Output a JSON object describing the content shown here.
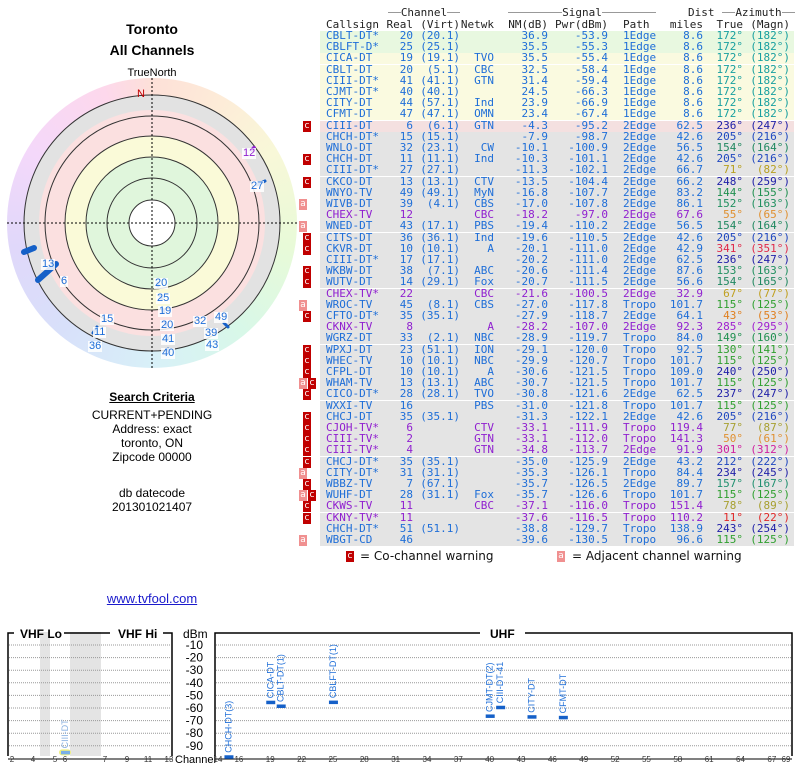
{
  "location": {
    "city": "Toronto",
    "scope": "All Channels"
  },
  "polar": {
    "north_label": "TrueNorth",
    "n_marker": "N",
    "labels": [
      {
        "text": "12",
        "color": "#9020d0"
      },
      {
        "text": "27",
        "color": "#1e6ed8"
      },
      {
        "text": "13",
        "color": "#1e6ed8"
      },
      {
        "text": "6",
        "color": "#1e6ed8"
      },
      {
        "text": "15",
        "color": "#1e6ed8"
      },
      {
        "text": "11",
        "color": "#1e6ed8"
      },
      {
        "text": "36",
        "color": "#1e6ed8"
      },
      {
        "text": "20",
        "color": "#1e6ed8"
      },
      {
        "text": "25",
        "color": "#1e6ed8"
      },
      {
        "text": "19",
        "color": "#1e6ed8"
      },
      {
        "text": "20",
        "color": "#1e6ed8"
      },
      {
        "text": "41",
        "color": "#1e6ed8"
      },
      {
        "text": "40",
        "color": "#1e6ed8"
      },
      {
        "text": "32",
        "color": "#1e6ed8"
      },
      {
        "text": "39",
        "color": "#1e6ed8"
      },
      {
        "text": "43",
        "color": "#1e6ed8"
      },
      {
        "text": "49",
        "color": "#1e6ed8"
      }
    ]
  },
  "search_criteria": {
    "heading": "Search Criteria",
    "lines": [
      "CURRENT+PENDING",
      "Address: exact",
      "toronto, ON",
      "Zipcode 00000"
    ],
    "db_label": "db datecode",
    "db_value": "201301021407"
  },
  "link": "www.tvfool.com",
  "table": {
    "group_headers": {
      "channel": "Channel",
      "signal": "Signal",
      "dist": "Dist",
      "azimuth": "Azimuth"
    },
    "columns": [
      "Callsign",
      "Real",
      "(Virt)",
      "Netwk",
      "NM(dB)",
      "Pwr(dBm)",
      "Path",
      "miles",
      "True",
      "(Magn)"
    ],
    "fields": [
      "warnings",
      "callsign",
      "real",
      "virt",
      "netwk",
      "nm",
      "pwr",
      "path",
      "dist",
      "true",
      "magn",
      "analog",
      "az_color"
    ],
    "rows": [
      [
        "",
        "CBLT-DT*",
        "20",
        "(20.1)",
        "",
        "36.9",
        "-53.9",
        "1Edge",
        "8.6",
        "172°",
        "(182°)",
        false,
        "#18a0a0"
      ],
      [
        "",
        "CBLFT-D*",
        "25",
        "(25.1)",
        "",
        "35.5",
        "-55.3",
        "1Edge",
        "8.6",
        "172°",
        "(182°)",
        false,
        "#18a0a0"
      ],
      [
        "",
        "CICA-DT",
        "19",
        "(19.1)",
        "TVO",
        "35.5",
        "-55.4",
        "1Edge",
        "8.6",
        "172°",
        "(182°)",
        false,
        "#18a0a0"
      ],
      [
        "",
        "CBLT-DT",
        "20",
        "(5.1)",
        "CBC",
        "32.5",
        "-58.4",
        "1Edge",
        "8.6",
        "172°",
        "(182°)",
        false,
        "#18a0a0"
      ],
      [
        "",
        "CIII-DT*",
        "41",
        "(41.1)",
        "GTN",
        "31.4",
        "-59.4",
        "1Edge",
        "8.6",
        "172°",
        "(182°)",
        false,
        "#18a0a0"
      ],
      [
        "",
        "CJMT-DT*",
        "40",
        "(40.1)",
        "",
        "24.5",
        "-66.3",
        "1Edge",
        "8.6",
        "172°",
        "(182°)",
        false,
        "#18a0a0"
      ],
      [
        "",
        "CITY-DT",
        "44",
        "(57.1)",
        "Ind",
        "23.9",
        "-66.9",
        "1Edge",
        "8.6",
        "172°",
        "(182°)",
        false,
        "#18a0a0"
      ],
      [
        "",
        "CFMT-DT",
        "47",
        "(47.1)",
        "OMN",
        "23.4",
        "-67.4",
        "1Edge",
        "8.6",
        "172°",
        "(182°)",
        false,
        "#18a0a0"
      ],
      [
        "c",
        "CIII-DT",
        "6",
        "(6.1)",
        "GTN",
        "-4.3",
        "-95.2",
        "2Edge",
        "62.5",
        "236°",
        "(247°)",
        false,
        "#2020a8"
      ],
      [
        "",
        "CHCH-DT*",
        "15",
        "(15.1)",
        "",
        "-7.9",
        "-98.7",
        "2Edge",
        "42.6",
        "205°",
        "(216°)",
        false,
        "#2048c0"
      ],
      [
        "",
        "WNLO-DT",
        "32",
        "(23.1)",
        "CW",
        "-10.1",
        "-100.9",
        "2Edge",
        "56.5",
        "154°",
        "(164°)",
        false,
        "#208860"
      ],
      [
        "c",
        "CHCH-DT",
        "11",
        "(11.1)",
        "Ind",
        "-10.3",
        "-101.1",
        "2Edge",
        "42.6",
        "205°",
        "(216°)",
        false,
        "#2048c0"
      ],
      [
        "",
        "CIII-DT*",
        "27",
        "(27.1)",
        "",
        "-11.3",
        "-102.1",
        "2Edge",
        "66.7",
        "71°",
        "(82°)",
        false,
        "#b8a020"
      ],
      [
        "c",
        "CKCO-DT",
        "13",
        "(13.1)",
        "CTV",
        "-13.5",
        "-104.4",
        "2Edge",
        "66.2",
        "248°",
        "(259°)",
        false,
        "#2020a8"
      ],
      [
        "",
        "WNYO-TV",
        "49",
        "(49.1)",
        "MyN",
        "-16.8",
        "-107.7",
        "2Edge",
        "83.2",
        "144°",
        "(155°)",
        false,
        "#209050"
      ],
      [
        "a",
        "WIVB-DT",
        "39",
        "(4.1)",
        "CBS",
        "-17.0",
        "-107.8",
        "2Edge",
        "86.1",
        "152°",
        "(163°)",
        false,
        "#209060"
      ],
      [
        "",
        "CHEX-TV",
        "12",
        "",
        "CBC",
        "-18.2",
        "-97.0",
        "2Edge",
        "67.6",
        "55°",
        "(65°)",
        true,
        "#e09030"
      ],
      [
        "a",
        "WNED-DT",
        "43",
        "(17.1)",
        "PBS",
        "-19.4",
        "-110.2",
        "2Edge",
        "56.5",
        "154°",
        "(164°)",
        false,
        "#208860"
      ],
      [
        "c",
        "CITS-DT",
        "36",
        "(36.1)",
        "Ind",
        "-19.6",
        "-110.5",
        "2Edge",
        "42.6",
        "205°",
        "(216°)",
        false,
        "#2048c0"
      ],
      [
        "c",
        "CKVR-DT",
        "10",
        "(10.1)",
        "A",
        "-20.1",
        "-111.0",
        "2Edge",
        "42.9",
        "341°",
        "(351°)",
        false,
        "#e02848"
      ],
      [
        "",
        "CIII-DT*",
        "17",
        "(17.1)",
        "",
        "-20.2",
        "-111.0",
        "2Edge",
        "62.5",
        "236°",
        "(247°)",
        false,
        "#2020a8"
      ],
      [
        "c",
        "WKBW-DT",
        "38",
        "(7.1)",
        "ABC",
        "-20.6",
        "-111.4",
        "2Edge",
        "87.6",
        "153°",
        "(163°)",
        false,
        "#209060"
      ],
      [
        "c",
        "WUTV-DT",
        "14",
        "(29.1)",
        "Fox",
        "-20.7",
        "-111.5",
        "2Edge",
        "56.6",
        "154°",
        "(165°)",
        false,
        "#208860"
      ],
      [
        "",
        "CHEX-TV*",
        "22",
        "",
        "CBC",
        "-21.6",
        "-100.5",
        "2Edge",
        "32.9",
        "67°",
        "(77°)",
        true,
        "#c0a020"
      ],
      [
        "a",
        "WROC-TV",
        "45",
        "(8.1)",
        "CBS",
        "-27.0",
        "-117.8",
        "Tropo",
        "101.7",
        "115°",
        "(125°)",
        false,
        "#30a030"
      ],
      [
        "c",
        "CFTO-DT*",
        "35",
        "(35.1)",
        "",
        "-27.9",
        "-118.7",
        "2Edge",
        "64.1",
        "43°",
        "(53°)",
        false,
        "#e08020"
      ],
      [
        "",
        "CKNX-TV",
        "8",
        "",
        "A",
        "-28.2",
        "-107.0",
        "2Edge",
        "92.3",
        "285°",
        "(295°)",
        true,
        "#a020d0"
      ],
      [
        "",
        "WGRZ-DT",
        "33",
        "(2.1)",
        "NBC",
        "-28.9",
        "-119.7",
        "Tropo",
        "84.0",
        "149°",
        "(160°)",
        false,
        "#209050"
      ],
      [
        "c",
        "WPXJ-DT",
        "23",
        "(51.1)",
        "ION",
        "-29.1",
        "-120.0",
        "Tropo",
        "92.5",
        "130°",
        "(141°)",
        false,
        "#30a030"
      ],
      [
        "c",
        "WHEC-TV",
        "10",
        "(10.1)",
        "NBC",
        "-29.9",
        "-120.7",
        "Tropo",
        "101.7",
        "115°",
        "(125°)",
        false,
        "#30a030"
      ],
      [
        "c",
        "CFPL-DT",
        "10",
        "(10.1)",
        "A",
        "-30.6",
        "-121.5",
        "Tropo",
        "109.0",
        "240°",
        "(250°)",
        false,
        "#2020a8"
      ],
      [
        "ac",
        "WHAM-TV",
        "13",
        "(13.1)",
        "ABC",
        "-30.7",
        "-121.5",
        "Tropo",
        "101.7",
        "115°",
        "(125°)",
        false,
        "#30a030"
      ],
      [
        "c",
        "CICO-DT*",
        "28",
        "(28.1)",
        "TVO",
        "-30.8",
        "-121.6",
        "2Edge",
        "62.5",
        "237°",
        "(247°)",
        false,
        "#2020a8"
      ],
      [
        "",
        "WXXI-TV",
        "16",
        "",
        "PBS",
        "-31.0",
        "-121.8",
        "Tropo",
        "101.7",
        "115°",
        "(125°)",
        false,
        "#30a030"
      ],
      [
        "c",
        "CHCJ-DT",
        "35",
        "(35.1)",
        "",
        "-31.3",
        "-122.1",
        "2Edge",
        "42.6",
        "205°",
        "(216°)",
        false,
        "#2048c0"
      ],
      [
        "c",
        "CJOH-TV*",
        "6",
        "",
        "CTV",
        "-33.1",
        "-111.9",
        "Tropo",
        "119.4",
        "77°",
        "(87°)",
        true,
        "#a8a030"
      ],
      [
        "c",
        "CIII-TV*",
        "2",
        "",
        "GTN",
        "-33.1",
        "-112.0",
        "Tropo",
        "141.3",
        "50°",
        "(61°)",
        true,
        "#e09030"
      ],
      [
        "c",
        "CIII-TV*",
        "4",
        "",
        "GTN",
        "-34.8",
        "-113.7",
        "2Edge",
        "91.9",
        "301°",
        "(312°)",
        true,
        "#d020a0"
      ],
      [
        "c",
        "CHCJ-DT*",
        "35",
        "(35.1)",
        "",
        "-35.0",
        "-125.9",
        "2Edge",
        "43.2",
        "212°",
        "(222°)",
        false,
        "#2048c0"
      ],
      [
        "a",
        "CITY-DT*",
        "31",
        "(31.1)",
        "",
        "-35.3",
        "-126.1",
        "Tropo",
        "84.4",
        "234°",
        "(245°)",
        false,
        "#2020a8"
      ],
      [
        "c",
        "WBBZ-TV",
        "7",
        "(67.1)",
        "",
        "-35.7",
        "-126.5",
        "2Edge",
        "89.7",
        "157°",
        "(167°)",
        false,
        "#209070"
      ],
      [
        "ac",
        "WUHF-DT",
        "28",
        "(31.1)",
        "Fox",
        "-35.7",
        "-126.6",
        "Tropo",
        "101.7",
        "115°",
        "(125°)",
        false,
        "#30a030"
      ],
      [
        "c",
        "CKWS-TV",
        "11",
        "",
        "CBC",
        "-37.1",
        "-116.0",
        "Tropo",
        "151.4",
        "78°",
        "(89°)",
        true,
        "#a8a030"
      ],
      [
        "c",
        "CKNY-TV*",
        "11",
        "",
        "",
        "-37.6",
        "-116.5",
        "Tropo",
        "110.2",
        "11°",
        "(22°)",
        true,
        "#e02828"
      ],
      [
        "",
        "CHCH-DT*",
        "51",
        "(51.1)",
        "",
        "-38.8",
        "-129.7",
        "Tropo",
        "138.9",
        "243°",
        "(254°)",
        false,
        "#2020a8"
      ],
      [
        "a",
        "WBGT-CD",
        "46",
        "",
        "",
        "-39.6",
        "-130.5",
        "Tropo",
        "96.6",
        "115°",
        "(125°)",
        false,
        "#30a030"
      ]
    ],
    "colors": {
      "digital": "#1e6ed8",
      "analog": "#9020d0",
      "cochannel": "#c00000",
      "adjacent": "#f09090"
    }
  },
  "legend": {
    "cochannel_mark": "c",
    "cochannel_text": "= Co-channel warning",
    "adjacent_mark": "a",
    "adjacent_text": "= Adjacent channel warning"
  },
  "chart_data": {
    "type": "bar",
    "title": "",
    "bands": [
      "VHF Lo",
      "VHF Hi",
      "UHF"
    ],
    "ylabel": "dBm",
    "xlabel": "Channel",
    "ylim": [
      -100,
      0
    ],
    "yticks": [
      -10,
      -20,
      -30,
      -40,
      -50,
      -60,
      -70,
      -80,
      -90
    ],
    "vhf_ticks": [
      "2",
      "4",
      "5",
      "6",
      "7",
      "9",
      "11",
      "13"
    ],
    "uhf_ticks": [
      "14",
      "16",
      "19",
      "22",
      "25",
      "28",
      "31",
      "34",
      "37",
      "40",
      "43",
      "46",
      "49",
      "52",
      "55",
      "58",
      "61",
      "64",
      "67",
      "69"
    ],
    "grid": true,
    "points": [
      {
        "label": "CIII-DT",
        "channel": 6,
        "dbm": -95.2,
        "band": "vhf",
        "highlight": true
      },
      {
        "label": "CHCH-DT(3)",
        "channel": 15,
        "dbm": -98.7,
        "band": "uhf"
      },
      {
        "label": "CICA-DT",
        "channel": 19,
        "dbm": -55.4,
        "band": "uhf"
      },
      {
        "label": "CBLT-DT(1)",
        "channel": 20,
        "dbm": -58.4,
        "band": "uhf"
      },
      {
        "label": "CBLFT-DT(1)",
        "channel": 25,
        "dbm": -55.3,
        "band": "uhf"
      },
      {
        "label": "CJMT-DT(2)",
        "channel": 40,
        "dbm": -66.3,
        "band": "uhf"
      },
      {
        "label": "CIII-DT-41",
        "channel": 41,
        "dbm": -59.4,
        "band": "uhf"
      },
      {
        "label": "CITY-DT",
        "channel": 44,
        "dbm": -66.9,
        "band": "uhf"
      },
      {
        "label": "CFMT-DT",
        "channel": 47,
        "dbm": -67.4,
        "band": "uhf"
      }
    ]
  }
}
